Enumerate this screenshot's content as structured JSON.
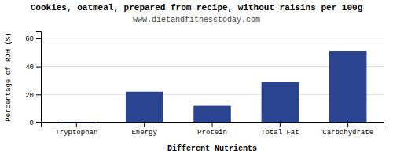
{
  "chart_data": {
    "type": "bar",
    "title": "Cookies, oatmeal, prepared from recipe, without raisins per 100g",
    "subtitle": "www.dietandfitnesstoday.com",
    "xlabel": "Different Nutrients",
    "ylabel": "Percentage of RDH (%)",
    "categories": [
      "Tryptophan",
      "Energy",
      "Protein",
      "Total Fat",
      "Carbohydrate"
    ],
    "values": [
      0.5,
      22,
      12,
      29,
      51
    ],
    "color": "#2b4490",
    "ylim": [
      0,
      65
    ],
    "yticks": [
      0,
      20,
      40,
      60
    ],
    "grid": true
  }
}
